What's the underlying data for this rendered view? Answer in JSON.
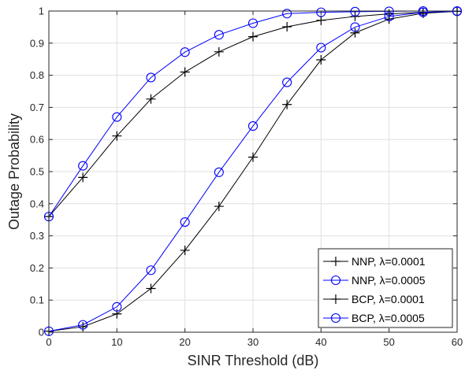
{
  "chart_data": {
    "type": "line",
    "xlabel": "SINR Threshold (dB)",
    "ylabel": "Outage Probability",
    "xlim": [
      0,
      60
    ],
    "ylim": [
      0,
      1
    ],
    "xticks": [
      0,
      10,
      20,
      30,
      40,
      50,
      60
    ],
    "xtick_labels": [
      "0",
      "10",
      "20",
      "30",
      "40",
      "50",
      "60"
    ],
    "yticks": [
      0,
      0.1,
      0.2,
      0.3,
      0.4,
      0.5,
      0.6,
      0.7,
      0.8,
      0.9,
      1
    ],
    "ytick_labels": [
      "0",
      "0.1",
      "0.2",
      "0.3",
      "0.4",
      "0.5",
      "0.6",
      "0.7",
      "0.8",
      "0.9",
      "1"
    ],
    "grid": true,
    "legend_position": "bottom-right",
    "series": [
      {
        "name": "NNP, λ=0.0001",
        "color": "#000000",
        "marker": "plus",
        "x": [
          0,
          5,
          10,
          15,
          20,
          25,
          30,
          35,
          40,
          45,
          50,
          55,
          60
        ],
        "y": [
          0.36,
          0.482,
          0.611,
          0.726,
          0.81,
          0.873,
          0.92,
          0.951,
          0.971,
          0.983,
          0.991,
          0.996,
          0.999
        ]
      },
      {
        "name": "NNP, λ=0.0005",
        "color": "#0000ff",
        "marker": "circle",
        "x": [
          0,
          5,
          10,
          15,
          20,
          25,
          30,
          35,
          40,
          45,
          50,
          55,
          60
        ],
        "y": [
          0.36,
          0.518,
          0.67,
          0.793,
          0.872,
          0.926,
          0.962,
          0.992,
          0.996,
          0.998,
          0.999,
          1.0,
          1.0
        ]
      },
      {
        "name": "BCP, λ=0.0001",
        "color": "#000000",
        "marker": "plus",
        "x": [
          0,
          5,
          10,
          15,
          20,
          25,
          30,
          35,
          40,
          45,
          50,
          55,
          60
        ],
        "y": [
          0.003,
          0.017,
          0.057,
          0.136,
          0.255,
          0.392,
          0.545,
          0.709,
          0.848,
          0.932,
          0.975,
          0.993,
          0.999
        ]
      },
      {
        "name": "BCP, λ=0.0005",
        "color": "#0000ff",
        "marker": "circle",
        "x": [
          0,
          5,
          10,
          15,
          20,
          25,
          30,
          35,
          40,
          45,
          50,
          55,
          60
        ],
        "y": [
          0.003,
          0.023,
          0.079,
          0.193,
          0.343,
          0.498,
          0.642,
          0.778,
          0.886,
          0.95,
          0.983,
          0.996,
          0.999
        ]
      }
    ]
  }
}
